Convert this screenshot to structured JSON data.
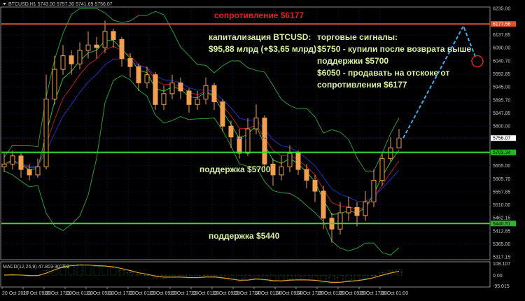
{
  "header": {
    "symbol_info": "BTCUSD,H1  5743.00 5757.30 5741.69 5756.07"
  },
  "macd_label": "MACD(12,26,9) 47.803 30.002",
  "colors": {
    "background": "#000000",
    "bull": "#f0a050",
    "bear": "#f0a050",
    "resistance": "#e0502a",
    "support": "#33dd33",
    "bands": "#2a9a3a",
    "ma_red": "#b02020",
    "ma_blue": "#2030c0",
    "arrow": "#44aaee",
    "macd_hist": "#2a8a2a",
    "macd_signal": "#e0a030"
  },
  "annotations": {
    "resistance": "сопротивление $6177",
    "cap_line1": "капитализация BTCUSD:",
    "cap_line2": "$95,88 млрд (+$3,65 млрд)",
    "signals": [
      "торговые сигналы:",
      "$5750 - купили после возврата выше",
      "поддержки $5700",
      "$6050 - продавать на отскоке от",
      "сопротивления $6177"
    ],
    "support1": "поддержка $5700",
    "support2": "поддержка $5440"
  },
  "chart_data": {
    "type": "candlestick",
    "ylim": [
      5317.15,
      6235.0
    ],
    "y_ticks": [
      "6235.00",
      "6137.85",
      "6090.00",
      "6040.70",
      "5992.85",
      "5945.00",
      "5895.70",
      "5847.85",
      "5800.00",
      "5655.00",
      "5605.70",
      "5557.85",
      "5510.00",
      "5462.15",
      "5412.85",
      "5365.00",
      "5317.15"
    ],
    "price_markers": [
      {
        "label": "6177.56",
        "value": 6177.56,
        "kind": "resistance"
      },
      {
        "label": "5756.07",
        "value": 5756.07,
        "kind": "current"
      },
      {
        "label": "5703.34",
        "value": 5703.34,
        "kind": "support"
      },
      {
        "label": "5440.51",
        "value": 5440.51,
        "kind": "support"
      }
    ],
    "x_ticks": [
      "20 Oct 2017",
      "20 Oct 09:00",
      "20 Oct 17:00",
      "21 Oct 01:00",
      "21 Oct 09:00",
      "21 Oct 17:00",
      "22 Oct 01:00",
      "22 Oct 09:00",
      "22 Oct 17:00",
      "23 Oct 01:00",
      "23 Oct 09:00",
      "23 Oct 17:00",
      "24 Oct 01:00",
      "24 Oct 09:00",
      "24 Oct 17:00",
      "25 Oct 01:00",
      "25 Oct 09:00",
      "25 Oct 17:00",
      "26 Oct 01:00"
    ],
    "close": [
      5660,
      5690,
      5640,
      5620,
      5650,
      5900,
      6010,
      6060,
      6030,
      6080,
      6100,
      6090,
      6150,
      6120,
      6050,
      6020,
      5960,
      5990,
      5880,
      5920,
      5960,
      5930,
      5880,
      5900,
      5950,
      5890,
      5800,
      5760,
      5700,
      5790,
      5830,
      5660,
      5620,
      5650,
      5700,
      5640,
      5600,
      5560,
      5460,
      5420,
      5480,
      5500,
      5470,
      5520,
      5600,
      5680,
      5720,
      5756
    ],
    "high": [
      5700,
      5710,
      5700,
      5660,
      5680,
      5990,
      6060,
      6100,
      6080,
      6110,
      6150,
      6130,
      6190,
      6160,
      6130,
      6070,
      6030,
      6020,
      6000,
      5950,
      5990,
      5980,
      5940,
      5930,
      5980,
      5960,
      5900,
      5820,
      5790,
      5830,
      5880,
      5840,
      5680,
      5690,
      5730,
      5710,
      5660,
      5620,
      5580,
      5480,
      5520,
      5540,
      5520,
      5560,
      5640,
      5700,
      5760,
      5790
    ],
    "low": [
      5630,
      5640,
      5610,
      5600,
      5610,
      5640,
      5880,
      5990,
      5990,
      6010,
      6050,
      6050,
      6070,
      6090,
      6020,
      5980,
      5930,
      5940,
      5860,
      5860,
      5900,
      5900,
      5850,
      5860,
      5880,
      5860,
      5780,
      5720,
      5680,
      5690,
      5770,
      5640,
      5580,
      5600,
      5630,
      5620,
      5570,
      5520,
      5420,
      5370,
      5400,
      5450,
      5430,
      5450,
      5500,
      5580,
      5670,
      5720
    ],
    "open_first": 5650,
    "resistance_level": 6177.56,
    "support_levels": [
      5703.34,
      5440.51
    ],
    "forecast_path": [
      5756.07,
      6170,
      6050
    ],
    "macd_ylim": [
      -95.015,
      108.107
    ],
    "macd_ticks": [
      "108.107",
      "0.00",
      "-95.015"
    ]
  }
}
